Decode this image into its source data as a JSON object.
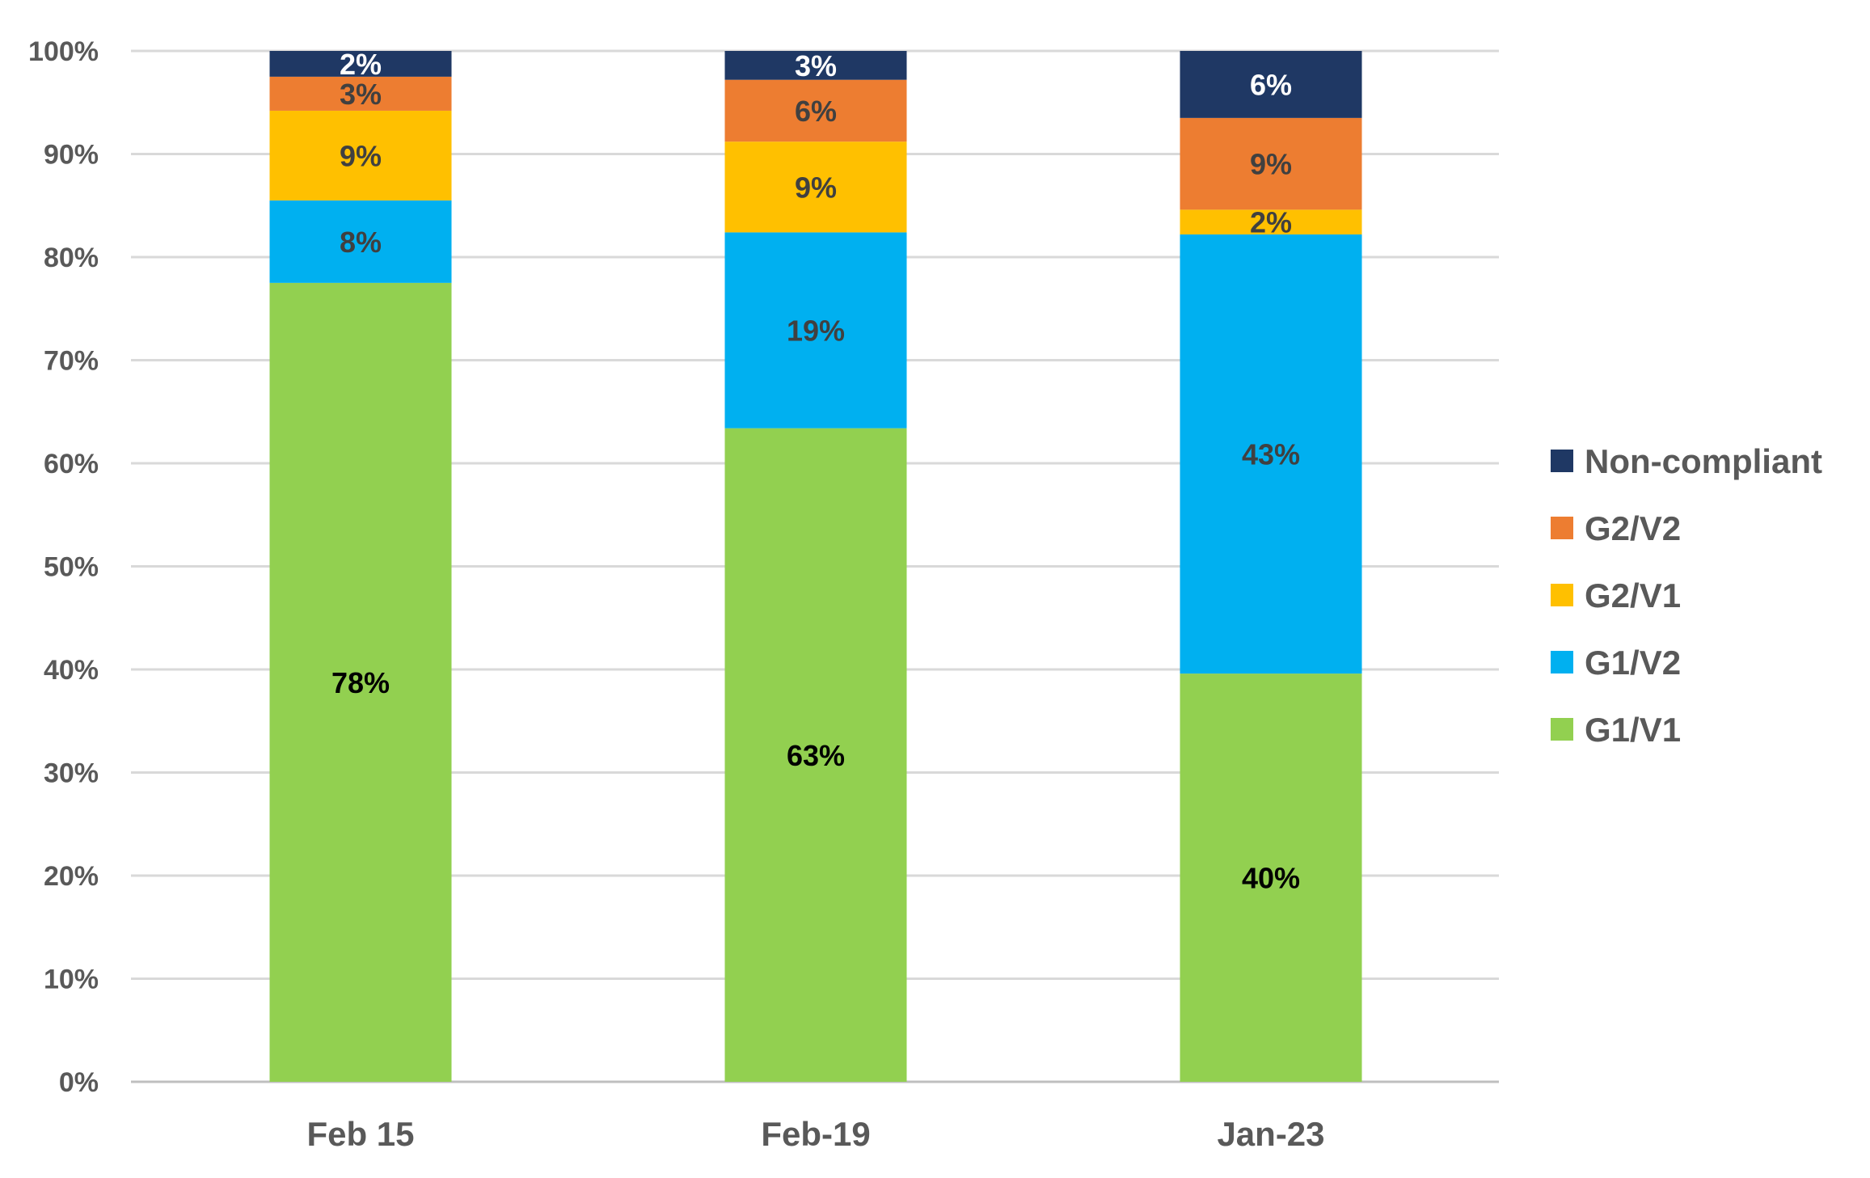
{
  "chart_data": {
    "type": "bar",
    "stacked": true,
    "title": "",
    "xlabel": "",
    "ylabel": "",
    "ylim": [
      0,
      100
    ],
    "y_ticks": [
      "0%",
      "10%",
      "20%",
      "30%",
      "40%",
      "50%",
      "60%",
      "70%",
      "80%",
      "90%",
      "100%"
    ],
    "grid": true,
    "legend_position": "right",
    "categories": [
      "Feb 15",
      "Feb-19",
      "Jan-23"
    ],
    "series": [
      {
        "name": "G1/V1",
        "color": "#92D050",
        "values": [
          77.5,
          63.4,
          39.6
        ],
        "labels": [
          "78%",
          "63%",
          "40%"
        ],
        "label_color": "#000000"
      },
      {
        "name": "G1/V2",
        "color": "#00B0F0",
        "values": [
          8.0,
          19.0,
          42.6
        ],
        "labels": [
          "8%",
          "19%",
          "43%"
        ],
        "label_color": "#404040"
      },
      {
        "name": "G2/V1",
        "color": "#FFC000",
        "values": [
          8.7,
          8.8,
          2.4
        ],
        "labels": [
          "9%",
          "9%",
          "2%"
        ],
        "label_color": "#404040"
      },
      {
        "name": "G2/V2",
        "color": "#ED7D31",
        "values": [
          3.3,
          6.0,
          8.9
        ],
        "labels": [
          "3%",
          "6%",
          "9%"
        ],
        "label_color": "#404040"
      },
      {
        "name": "Non-compliant",
        "color": "#1F3864",
        "values": [
          2.5,
          2.8,
          6.5
        ],
        "labels": [
          "2%",
          "3%",
          "6%"
        ],
        "label_color": "#FFFFFF"
      }
    ]
  }
}
